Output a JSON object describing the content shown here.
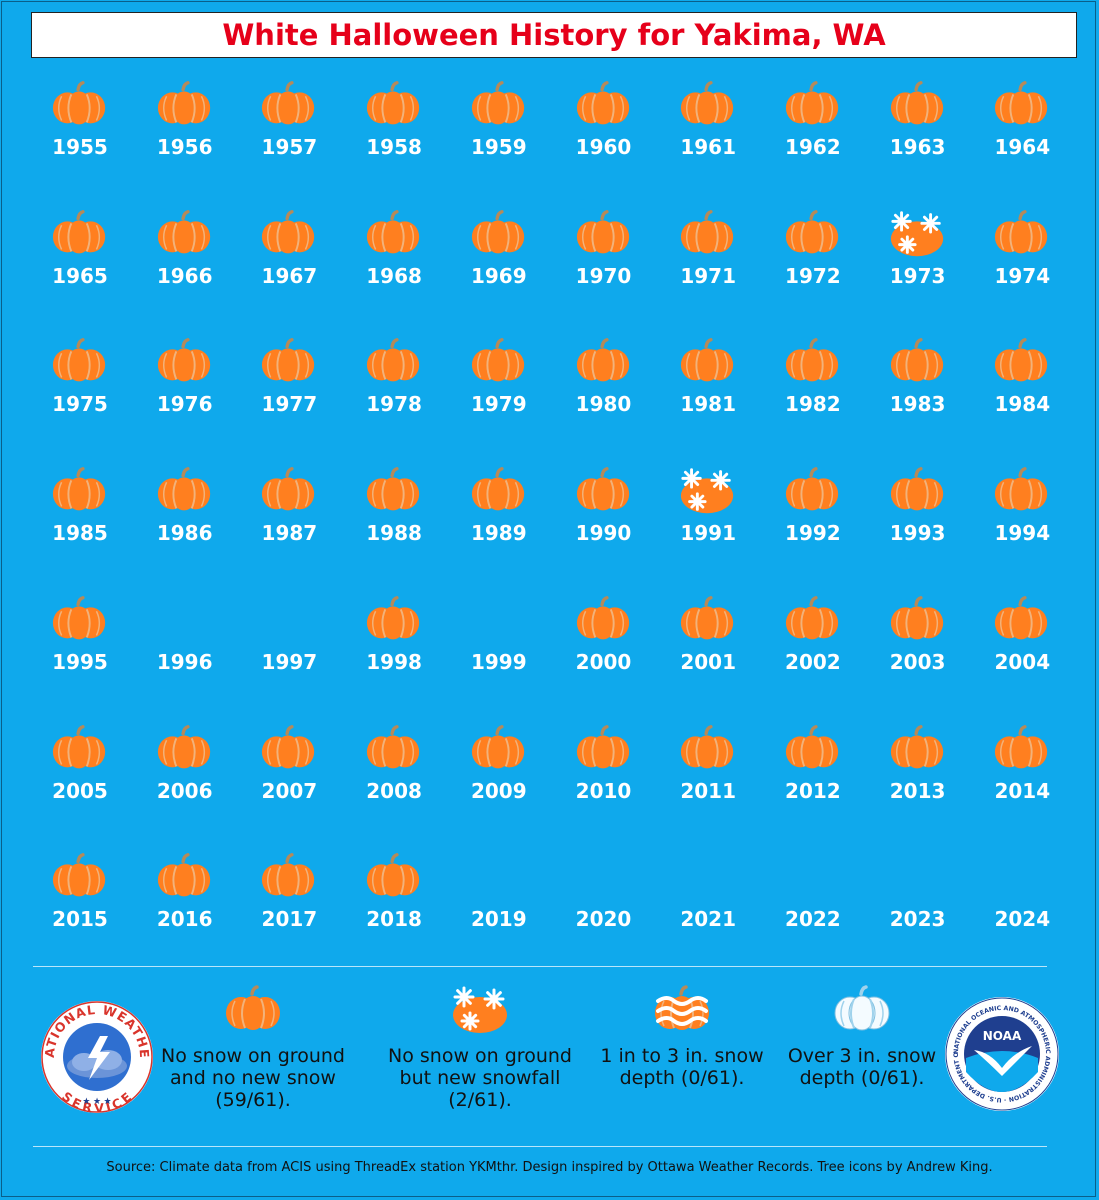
{
  "title": "White Halloween History for Yakima, WA",
  "colors": {
    "background": "#0fa9ec",
    "pumpkin": "#ff7f1f",
    "pumpkin_rib": "#f2b27a",
    "stem": "#b58a5a",
    "title": "#e6001a"
  },
  "chart_data": {
    "type": "table",
    "columns": 10,
    "categories_legend": [
      {
        "key": "none",
        "label": "No snow on ground and no new snow (59/61).",
        "count": 59,
        "icon": "pumpkin-icon"
      },
      {
        "key": "snowfall",
        "label": "No snow on ground but new snowfall (2/61).",
        "count": 2,
        "icon": "snowy-pumpkin-icon"
      },
      {
        "key": "depth_1_3",
        "label": "1 in to 3 in. snow depth (0/61).",
        "count": 0,
        "icon": "striped-snow-pumpkin-icon"
      },
      {
        "key": "depth_over_3",
        "label": "Over 3 in. snow depth (0/61).",
        "count": 0,
        "icon": "white-pumpkin-icon"
      }
    ],
    "years": [
      {
        "year": "1955",
        "status": "none"
      },
      {
        "year": "1956",
        "status": "none"
      },
      {
        "year": "1957",
        "status": "none"
      },
      {
        "year": "1958",
        "status": "none"
      },
      {
        "year": "1959",
        "status": "none"
      },
      {
        "year": "1960",
        "status": "none"
      },
      {
        "year": "1961",
        "status": "none"
      },
      {
        "year": "1962",
        "status": "none"
      },
      {
        "year": "1963",
        "status": "none"
      },
      {
        "year": "1964",
        "status": "none"
      },
      {
        "year": "1965",
        "status": "none"
      },
      {
        "year": "1966",
        "status": "none"
      },
      {
        "year": "1967",
        "status": "none"
      },
      {
        "year": "1968",
        "status": "none"
      },
      {
        "year": "1969",
        "status": "none"
      },
      {
        "year": "1970",
        "status": "none"
      },
      {
        "year": "1971",
        "status": "none"
      },
      {
        "year": "1972",
        "status": "none"
      },
      {
        "year": "1973",
        "status": "snowfall"
      },
      {
        "year": "1974",
        "status": "none"
      },
      {
        "year": "1975",
        "status": "none"
      },
      {
        "year": "1976",
        "status": "none"
      },
      {
        "year": "1977",
        "status": "none"
      },
      {
        "year": "1978",
        "status": "none"
      },
      {
        "year": "1979",
        "status": "none"
      },
      {
        "year": "1980",
        "status": "none"
      },
      {
        "year": "1981",
        "status": "none"
      },
      {
        "year": "1982",
        "status": "none"
      },
      {
        "year": "1983",
        "status": "none"
      },
      {
        "year": "1984",
        "status": "none"
      },
      {
        "year": "1985",
        "status": "none"
      },
      {
        "year": "1986",
        "status": "none"
      },
      {
        "year": "1987",
        "status": "none"
      },
      {
        "year": "1988",
        "status": "none"
      },
      {
        "year": "1989",
        "status": "none"
      },
      {
        "year": "1990",
        "status": "none"
      },
      {
        "year": "1991",
        "status": "snowfall"
      },
      {
        "year": "1992",
        "status": "none"
      },
      {
        "year": "1993",
        "status": "none"
      },
      {
        "year": "1994",
        "status": "none"
      },
      {
        "year": "1995",
        "status": "none"
      },
      {
        "year": "1996",
        "status": "missing"
      },
      {
        "year": "1997",
        "status": "missing"
      },
      {
        "year": "1998",
        "status": "none"
      },
      {
        "year": "1999",
        "status": "missing"
      },
      {
        "year": "2000",
        "status": "none"
      },
      {
        "year": "2001",
        "status": "none"
      },
      {
        "year": "2002",
        "status": "none"
      },
      {
        "year": "2003",
        "status": "none"
      },
      {
        "year": "2004",
        "status": "none"
      },
      {
        "year": "2005",
        "status": "none"
      },
      {
        "year": "2006",
        "status": "none"
      },
      {
        "year": "2007",
        "status": "none"
      },
      {
        "year": "2008",
        "status": "none"
      },
      {
        "year": "2009",
        "status": "none"
      },
      {
        "year": "2010",
        "status": "none"
      },
      {
        "year": "2011",
        "status": "none"
      },
      {
        "year": "2012",
        "status": "none"
      },
      {
        "year": "2013",
        "status": "none"
      },
      {
        "year": "2014",
        "status": "none"
      },
      {
        "year": "2015",
        "status": "none"
      },
      {
        "year": "2016",
        "status": "none"
      },
      {
        "year": "2017",
        "status": "none"
      },
      {
        "year": "2018",
        "status": "none"
      },
      {
        "year": "2019",
        "status": "missing"
      },
      {
        "year": "2020",
        "status": "missing"
      },
      {
        "year": "2021",
        "status": "missing"
      },
      {
        "year": "2022",
        "status": "missing"
      },
      {
        "year": "2023",
        "status": "missing"
      },
      {
        "year": "2024",
        "status": "missing"
      }
    ]
  },
  "logos": {
    "nws": {
      "icon": "nws-logo-icon",
      "text": "NATIONAL WEATHER SERVICE"
    },
    "noaa": {
      "icon": "noaa-logo-icon",
      "center_text": "NOAA",
      "ring_text": "NATIONAL OCEANIC AND ATMOSPHERIC ADMINISTRATION · U.S. DEPARTMENT OF COMMERCE"
    }
  },
  "source": "Source: Climate data from ACIS using ThreadEx station YKMthr. Design inspired by Ottawa Weather Records. Tree icons by Andrew King."
}
